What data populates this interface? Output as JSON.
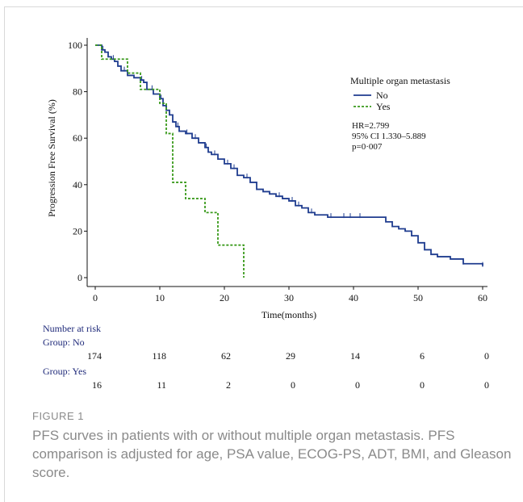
{
  "figure": {
    "label": "FIGURE 1",
    "caption": "PFS curves in patients with or without multiple organ metastasis. PFS comparison is adjusted for age, PSA value, ECOG-PS, ADT, BMI, and Gleason score."
  },
  "chart_data": {
    "type": "line",
    "subtype": "kaplan-meier step curve",
    "xlabel": "Time(months)",
    "ylabel": "Progression Free Survival (%)",
    "xlim": [
      0,
      60
    ],
    "ylim": [
      0,
      100
    ],
    "xticks": [
      0,
      10,
      20,
      30,
      40,
      50,
      60
    ],
    "yticks": [
      0,
      20,
      40,
      60,
      80,
      100
    ],
    "grid": false,
    "legend": {
      "title": "Multiple organ metastasis",
      "placement": "top-right",
      "entries": [
        "No",
        "Yes"
      ]
    },
    "annotations": [
      "HR=2.799",
      "95% CI 1.330–5.889",
      "p=0·007"
    ],
    "series": [
      {
        "name": "No",
        "color": "#1f3c8f",
        "style": "solid",
        "x": [
          0,
          0.5,
          1,
          1.5,
          2,
          2.5,
          3,
          3.5,
          4,
          5,
          6,
          7,
          7.5,
          8,
          9,
          10,
          10.5,
          11,
          11.5,
          12,
          12.5,
          13,
          14,
          15,
          16,
          17,
          17.5,
          18,
          19,
          20,
          21,
          22,
          23,
          24,
          25,
          26,
          27,
          28,
          29,
          30,
          31,
          32,
          33,
          34,
          36,
          38,
          40,
          42,
          43,
          44,
          45,
          46,
          47,
          48,
          49,
          50,
          51,
          52,
          53,
          55,
          57,
          58,
          60
        ],
        "y": [
          100,
          100,
          98,
          97,
          95,
          94,
          93,
          91,
          89,
          87,
          86,
          85,
          84,
          81,
          79,
          77,
          74,
          72,
          70,
          67,
          65,
          63,
          62,
          60,
          58,
          56,
          54,
          53,
          51,
          49,
          47,
          44,
          43,
          41,
          38,
          37,
          36,
          35,
          34,
          33,
          31,
          30,
          28,
          27,
          26,
          26,
          26,
          26,
          26,
          26,
          24,
          22,
          21,
          20,
          18,
          15,
          12,
          10,
          9,
          8,
          6,
          6,
          5
        ],
        "censor_x": [
          1.2,
          2.8,
          4.5,
          7.2,
          8.8,
          10.2,
          12.8,
          14.2,
          15.5,
          17.2,
          18.5,
          20.5,
          21.5,
          23.5,
          28.5,
          30.5,
          31.5,
          33.5,
          36.5,
          38.5,
          39.5,
          41,
          57,
          60
        ]
      },
      {
        "name": "Yes",
        "color": "#3a9a1c",
        "style": "dashed",
        "x": [
          0,
          1,
          2,
          3,
          4,
          5,
          6,
          7,
          8,
          9,
          10,
          11,
          11.5,
          12,
          13,
          14,
          15,
          16,
          17,
          18,
          19,
          20,
          21,
          22,
          23
        ],
        "y": [
          100,
          94,
          94,
          94,
          94,
          88,
          88,
          81,
          81,
          81,
          75,
          62,
          62,
          41,
          41,
          34,
          34,
          34,
          28,
          28,
          14,
          14,
          14,
          14,
          0
        ],
        "censor_x": []
      }
    ],
    "risk_table": {
      "title": "Number at risk",
      "times": [
        0,
        10,
        20,
        30,
        40,
        50,
        60
      ],
      "groups": [
        {
          "label": "Group: No",
          "counts": [
            "174",
            "118",
            "62",
            "29",
            "14",
            "6",
            "0"
          ]
        },
        {
          "label": "Group: Yes",
          "counts": [
            "16",
            "11",
            "2",
            "0",
            "0",
            "0",
            "0"
          ]
        }
      ]
    },
    "colors": {
      "axis": "#111111",
      "risk_labels": "#1f2a7a",
      "text": "#111111"
    }
  }
}
